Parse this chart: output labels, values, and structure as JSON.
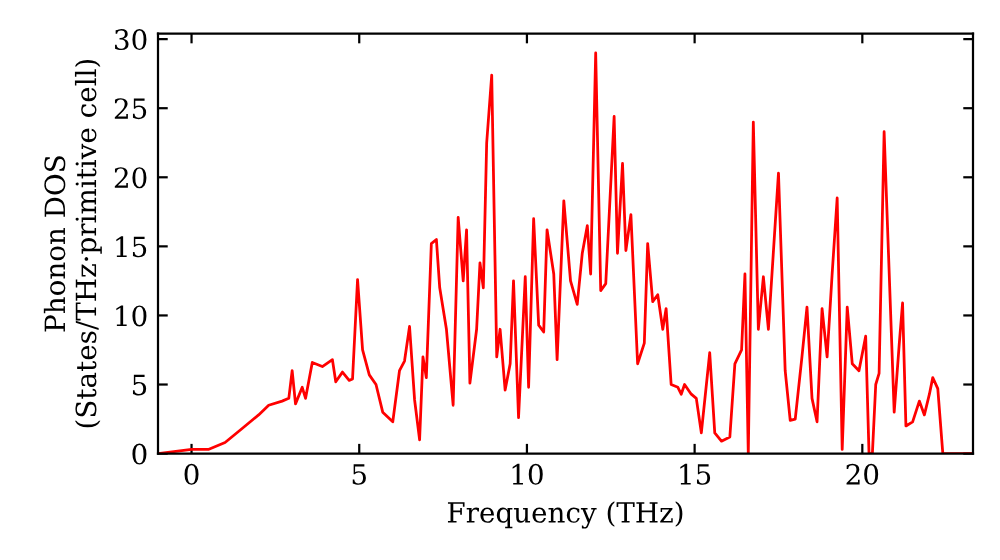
{
  "chart_data": {
    "type": "line",
    "xlabel": "Frequency (THz)",
    "ylabel": "Phonon DOS\n(States/THz·primitive cell)",
    "xlim": [
      -1,
      23.3
    ],
    "ylim": [
      0,
      30.4
    ],
    "xticks": [
      0,
      5,
      10,
      15,
      20
    ],
    "yticks": [
      0,
      5,
      10,
      15,
      20,
      25,
      30
    ],
    "grid": false,
    "legend": false,
    "marker": "none",
    "line_style": "solid",
    "series": [
      {
        "color": "#ff0000",
        "x": [
          -1,
          0,
          0.5,
          1,
          1.5,
          2,
          2.3,
          2.7,
          2.9,
          3.0,
          3.1,
          3.3,
          3.4,
          3.6,
          3.9,
          4.2,
          4.3,
          4.5,
          4.7,
          4.8,
          4.95,
          5.1,
          5.3,
          5.5,
          5.7,
          6.0,
          6.2,
          6.35,
          6.5,
          6.65,
          6.8,
          6.9,
          7.0,
          7.15,
          7.3,
          7.4,
          7.6,
          7.8,
          7.95,
          8.1,
          8.2,
          8.3,
          8.5,
          8.6,
          8.7,
          8.8,
          8.95,
          9.1,
          9.2,
          9.35,
          9.5,
          9.6,
          9.75,
          9.95,
          10.05,
          10.2,
          10.35,
          10.5,
          10.6,
          10.8,
          10.9,
          11.1,
          11.3,
          11.5,
          11.65,
          11.8,
          11.9,
          12.05,
          12.2,
          12.35,
          12.6,
          12.7,
          12.85,
          12.95,
          13.1,
          13.3,
          13.5,
          13.6,
          13.75,
          13.9,
          14.05,
          14.15,
          14.3,
          14.5,
          14.6,
          14.7,
          14.9,
          15.05,
          15.2,
          15.45,
          15.6,
          15.8,
          16.05,
          16.2,
          16.4,
          16.5,
          16.6,
          16.75,
          16.9,
          17.05,
          17.2,
          17.5,
          17.7,
          17.85,
          18.0,
          18.2,
          18.35,
          18.5,
          18.65,
          18.8,
          18.95,
          19.1,
          19.25,
          19.4,
          19.55,
          19.7,
          19.9,
          20.1,
          20.2,
          20.3,
          20.4,
          20.5,
          20.65,
          20.95,
          21.1,
          21.2,
          21.3,
          21.5,
          21.7,
          21.85,
          22.0,
          22.1,
          22.25,
          22.4,
          23.3
        ],
        "values": [
          0,
          0.3,
          0.3,
          0.8,
          1.8,
          2.8,
          3.5,
          3.8,
          4.0,
          6.0,
          3.6,
          4.8,
          4.0,
          6.6,
          6.3,
          6.8,
          5.2,
          5.9,
          5.3,
          5.4,
          12.6,
          7.5,
          5.7,
          5.0,
          3.0,
          2.3,
          6.0,
          6.7,
          9.2,
          3.9,
          1.0,
          7.0,
          5.5,
          15.2,
          15.5,
          12.0,
          9.0,
          3.5,
          17.1,
          12.5,
          16.2,
          5.1,
          9.0,
          13.8,
          12.0,
          22.5,
          27.4,
          7.0,
          9.0,
          4.6,
          6.5,
          12.5,
          2.6,
          12.8,
          4.8,
          17.0,
          9.3,
          8.8,
          16.2,
          13.0,
          6.8,
          18.3,
          12.5,
          10.8,
          14.5,
          16.5,
          13.0,
          29.0,
          11.8,
          12.3,
          24.4,
          14.5,
          21.0,
          14.7,
          17.3,
          6.5,
          8.0,
          15.2,
          11.0,
          11.5,
          9.0,
          10.5,
          5.0,
          4.8,
          4.3,
          5.0,
          4.3,
          4.0,
          1.5,
          7.3,
          1.5,
          0.9,
          1.2,
          6.5,
          7.5,
          13.0,
          0,
          24.0,
          9.0,
          12.8,
          9.0,
          20.3,
          6.0,
          2.4,
          2.5,
          7.0,
          10.6,
          4.0,
          2.3,
          10.5,
          7.0,
          13.0,
          18.5,
          0.3,
          10.6,
          6.5,
          6.0,
          8.5,
          0,
          0,
          5.0,
          5.8,
          23.3,
          3.0,
          7.9,
          10.9,
          2.0,
          2.3,
          3.8,
          2.8,
          4.3,
          5.5,
          4.7,
          0,
          0
        ]
      }
    ]
  }
}
